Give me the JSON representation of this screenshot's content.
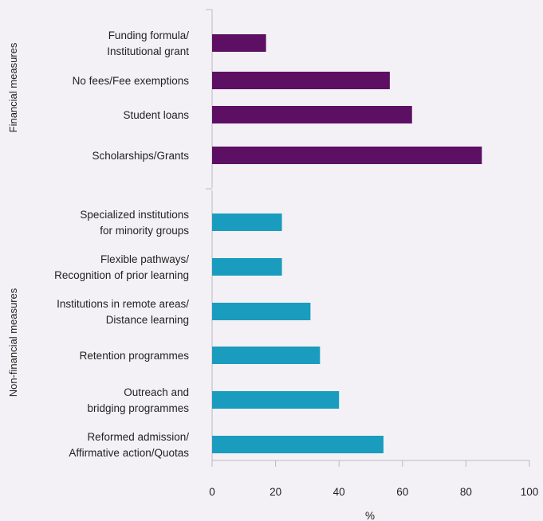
{
  "chart_data": {
    "type": "bar",
    "orientation": "horizontal",
    "xlabel": "%",
    "xlim": [
      0,
      100
    ],
    "xticks": [
      "0",
      "20",
      "40",
      "60",
      "80",
      "100"
    ],
    "grid": false,
    "groups": [
      {
        "label": "Financial measures",
        "color": "#5c0f63",
        "categories": [
          [
            "Funding formula/",
            "Institutional grant"
          ],
          [
            "No fees/Fee exemptions"
          ],
          [
            "Student loans"
          ],
          [
            "Scholarships/Grants"
          ]
        ],
        "values": [
          17,
          56,
          63,
          85
        ]
      },
      {
        "label": "Non-financial measures",
        "color": "#1a9cbe",
        "categories": [
          [
            "Specialized institutions",
            "for minority groups"
          ],
          [
            "Flexible pathways/",
            "Recognition of prior learning"
          ],
          [
            "Institutions in remote areas/",
            "Distance learning"
          ],
          [
            "Retention programmes"
          ],
          [
            "Outreach and",
            "bridging programmes"
          ],
          [
            "Reformed admission/",
            "Affirmative action/Quotas"
          ]
        ],
        "values": [
          22,
          22,
          31,
          34,
          40,
          54
        ]
      }
    ]
  }
}
